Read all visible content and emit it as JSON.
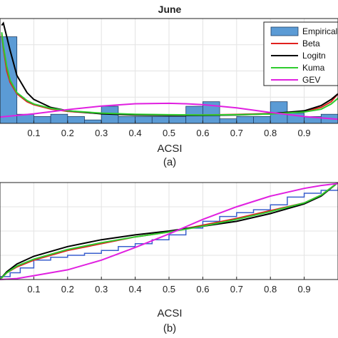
{
  "chart_data": [
    {
      "type": "bar",
      "title": "June",
      "xlabel": "ACSI",
      "panel_label": "(a)",
      "xlim": [
        0,
        1
      ],
      "ylim": [
        0,
        4.6
      ],
      "xticks": [
        "0.1",
        "0.2",
        "0.3",
        "0.4",
        "0.5",
        "0.6",
        "0.7",
        "0.8",
        "0.9"
      ],
      "grid": true,
      "legend_position": "top-right",
      "legend": [
        "Empirical",
        "Beta",
        "Logitn",
        "Kuma",
        "GEV"
      ],
      "histogram": {
        "name": "Empirical",
        "color": "#5b9bd5",
        "bin_edges": [
          0,
          0.05,
          0.1,
          0.15,
          0.2,
          0.25,
          0.3,
          0.35,
          0.4,
          0.45,
          0.5,
          0.55,
          0.6,
          0.65,
          0.7,
          0.75,
          0.8,
          0.85,
          0.9,
          0.95,
          1.0
        ],
        "values": [
          3.8,
          0.4,
          0.3,
          0.4,
          0.3,
          0.15,
          0.75,
          0.3,
          0.3,
          0.3,
          0.3,
          0.75,
          0.95,
          0.2,
          0.3,
          0.3,
          0.95,
          0.45,
          0.3,
          0.4
        ]
      },
      "series": [
        {
          "name": "Beta",
          "color": "#e0201e",
          "x": [
            0.005,
            0.01,
            0.02,
            0.03,
            0.05,
            0.08,
            0.1,
            0.15,
            0.2,
            0.3,
            0.4,
            0.5,
            0.6,
            0.7,
            0.8,
            0.9,
            0.95,
            0.98,
            1.0
          ],
          "y": [
            3.9,
            3.3,
            2.3,
            1.8,
            1.3,
            0.95,
            0.82,
            0.63,
            0.53,
            0.43,
            0.39,
            0.37,
            0.37,
            0.39,
            0.43,
            0.53,
            0.7,
            0.95,
            1.3
          ]
        },
        {
          "name": "Logitn",
          "color": "#000000",
          "x": [
            0.005,
            0.01,
            0.02,
            0.03,
            0.05,
            0.08,
            0.1,
            0.15,
            0.2,
            0.3,
            0.4,
            0.5,
            0.6,
            0.7,
            0.8,
            0.9,
            0.95,
            0.98,
            1.0
          ],
          "y": [
            4.3,
            4.4,
            3.8,
            3.2,
            2.1,
            1.35,
            1.05,
            0.7,
            0.55,
            0.42,
            0.37,
            0.35,
            0.35,
            0.37,
            0.42,
            0.55,
            0.78,
            1.05,
            1.3
          ]
        },
        {
          "name": "Kuma",
          "color": "#2ecc2e",
          "x": [
            0.005,
            0.01,
            0.02,
            0.03,
            0.05,
            0.08,
            0.1,
            0.15,
            0.2,
            0.3,
            0.4,
            0.5,
            0.6,
            0.7,
            0.8,
            0.9,
            0.95,
            0.98,
            1.0
          ],
          "y": [
            4.0,
            3.4,
            2.5,
            1.9,
            1.35,
            1.0,
            0.85,
            0.66,
            0.55,
            0.45,
            0.4,
            0.38,
            0.37,
            0.38,
            0.41,
            0.5,
            0.62,
            0.85,
            1.1
          ]
        },
        {
          "name": "GEV",
          "color": "#e020e0",
          "x": [
            0.0,
            0.1,
            0.2,
            0.3,
            0.4,
            0.5,
            0.55,
            0.6,
            0.7,
            0.8,
            0.9,
            1.0
          ],
          "y": [
            0.28,
            0.42,
            0.6,
            0.76,
            0.86,
            0.88,
            0.86,
            0.82,
            0.68,
            0.48,
            0.3,
            0.18
          ]
        }
      ]
    },
    {
      "type": "line",
      "xlabel": "ACSI",
      "panel_label": "(b)",
      "xlim": [
        0,
        1
      ],
      "ylim": [
        0,
        1
      ],
      "xticks": [
        "0.1",
        "0.2",
        "0.3",
        "0.4",
        "0.5",
        "0.6",
        "0.7",
        "0.8",
        "0.9"
      ],
      "grid": true,
      "series": [
        {
          "name": "Empirical",
          "color": "#3a5fcd",
          "step": true,
          "x": [
            0.0,
            0.03,
            0.06,
            0.1,
            0.15,
            0.2,
            0.25,
            0.3,
            0.35,
            0.4,
            0.45,
            0.5,
            0.55,
            0.6,
            0.65,
            0.7,
            0.75,
            0.8,
            0.85,
            0.9,
            0.95,
            1.0
          ],
          "y": [
            0.03,
            0.07,
            0.12,
            0.2,
            0.23,
            0.25,
            0.27,
            0.3,
            0.34,
            0.37,
            0.41,
            0.46,
            0.53,
            0.6,
            0.65,
            0.69,
            0.72,
            0.77,
            0.85,
            0.89,
            0.92,
            0.95
          ]
        },
        {
          "name": "Beta",
          "color": "#e0201e",
          "x": [
            0.0,
            0.02,
            0.05,
            0.1,
            0.2,
            0.3,
            0.4,
            0.5,
            0.6,
            0.7,
            0.8,
            0.9,
            0.95,
            1.0
          ],
          "y": [
            0.0,
            0.07,
            0.13,
            0.2,
            0.3,
            0.37,
            0.44,
            0.49,
            0.56,
            0.63,
            0.71,
            0.79,
            0.87,
            1.0
          ]
        },
        {
          "name": "Logitn",
          "color": "#000000",
          "x": [
            0.0,
            0.02,
            0.05,
            0.1,
            0.2,
            0.3,
            0.4,
            0.5,
            0.6,
            0.7,
            0.8,
            0.9,
            0.95,
            1.0
          ],
          "y": [
            0.0,
            0.08,
            0.16,
            0.24,
            0.34,
            0.41,
            0.46,
            0.5,
            0.55,
            0.6,
            0.68,
            0.78,
            0.86,
            1.0
          ]
        },
        {
          "name": "Kuma",
          "color": "#2ecc2e",
          "x": [
            0.0,
            0.02,
            0.05,
            0.1,
            0.2,
            0.3,
            0.4,
            0.5,
            0.6,
            0.7,
            0.8,
            0.9,
            0.95,
            1.0
          ],
          "y": [
            0.0,
            0.07,
            0.14,
            0.21,
            0.31,
            0.38,
            0.44,
            0.49,
            0.55,
            0.62,
            0.7,
            0.79,
            0.87,
            1.0
          ]
        },
        {
          "name": "GEV",
          "color": "#e020e0",
          "x": [
            0.0,
            0.05,
            0.1,
            0.2,
            0.3,
            0.4,
            0.5,
            0.6,
            0.7,
            0.8,
            0.9,
            0.95,
            1.0
          ],
          "y": [
            0.0,
            0.01,
            0.04,
            0.1,
            0.2,
            0.33,
            0.47,
            0.62,
            0.75,
            0.86,
            0.94,
            0.97,
            0.99
          ]
        }
      ]
    }
  ]
}
